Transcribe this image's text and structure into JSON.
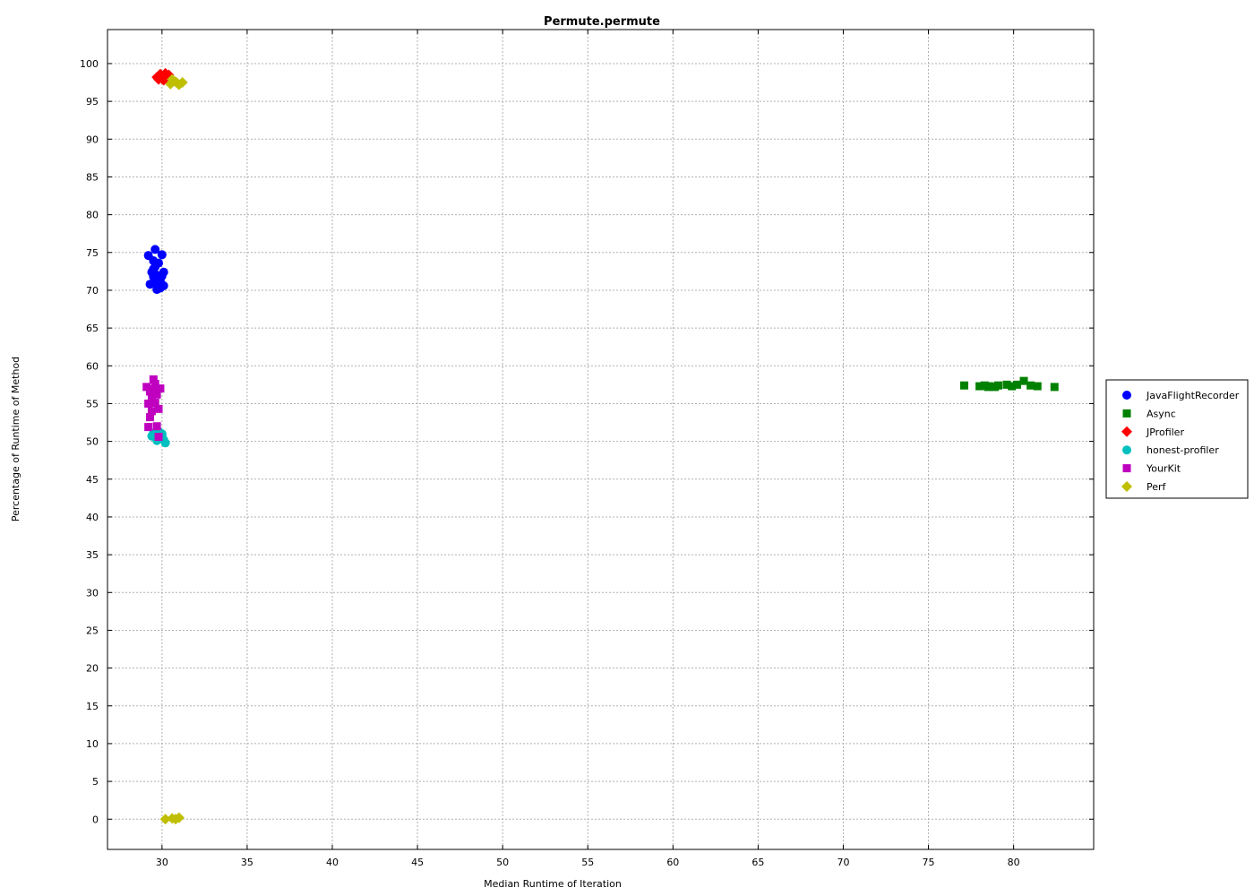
{
  "chart_data": {
    "type": "scatter",
    "title": "Permute.permute",
    "xlabel": "Median Runtime of Iteration",
    "ylabel": "Percentage of Runtime of Method",
    "xlim": [
      26.8,
      84.7
    ],
    "ylim": [
      -4,
      104.5
    ],
    "xticks": [
      30,
      35,
      40,
      45,
      50,
      55,
      60,
      65,
      70,
      75,
      80
    ],
    "yticks": [
      0,
      5,
      10,
      15,
      20,
      25,
      30,
      35,
      40,
      45,
      50,
      55,
      60,
      65,
      70,
      75,
      80,
      85,
      90,
      95,
      100
    ],
    "grid": true,
    "legend_position": "right",
    "series": [
      {
        "name": "JavaFlightRecorder",
        "marker": "circle",
        "color": "#0000ff",
        "points": [
          [
            29.2,
            74.6
          ],
          [
            29.6,
            75.4
          ],
          [
            30.0,
            74.7
          ],
          [
            29.5,
            73.9
          ],
          [
            29.8,
            73.6
          ],
          [
            29.6,
            73.1
          ],
          [
            29.4,
            72.4
          ],
          [
            29.7,
            72.0
          ],
          [
            30.1,
            72.4
          ],
          [
            30.0,
            71.9
          ],
          [
            29.5,
            71.8
          ],
          [
            29.9,
            71.3
          ],
          [
            29.3,
            70.8
          ],
          [
            29.6,
            71.1
          ],
          [
            30.1,
            70.6
          ],
          [
            29.7,
            70.1
          ],
          [
            29.9,
            70.3
          ],
          [
            29.5,
            72.8
          ]
        ]
      },
      {
        "name": "Async",
        "marker": "square",
        "color": "#008000",
        "points": [
          [
            77.1,
            57.4
          ],
          [
            78.0,
            57.3
          ],
          [
            78.3,
            57.4
          ],
          [
            78.6,
            57.3
          ],
          [
            78.9,
            57.2
          ],
          [
            79.1,
            57.4
          ],
          [
            79.6,
            57.5
          ],
          [
            79.9,
            57.3
          ],
          [
            80.2,
            57.5
          ],
          [
            80.6,
            58.0
          ],
          [
            81.0,
            57.4
          ],
          [
            81.4,
            57.3
          ],
          [
            82.4,
            57.2
          ],
          [
            78.5,
            57.2
          ]
        ]
      },
      {
        "name": "JProfiler",
        "marker": "diamond",
        "color": "#ff0000",
        "points": [
          [
            29.7,
            98.2
          ],
          [
            29.9,
            98.6
          ],
          [
            30.0,
            98.0
          ],
          [
            30.2,
            98.7
          ],
          [
            30.3,
            98.3
          ],
          [
            30.1,
            97.8
          ],
          [
            29.8,
            97.9
          ],
          [
            30.4,
            98.5
          ]
        ]
      },
      {
        "name": "honest-profiler",
        "marker": "circle",
        "color": "#00bfbf",
        "points": [
          [
            29.5,
            51.1
          ],
          [
            29.8,
            51.3
          ],
          [
            30.0,
            51.0
          ],
          [
            29.6,
            50.6
          ],
          [
            29.9,
            50.4
          ],
          [
            30.1,
            50.2
          ],
          [
            29.7,
            50.1
          ],
          [
            30.2,
            49.8
          ],
          [
            29.4,
            50.7
          ],
          [
            30.0,
            50.8
          ]
        ]
      },
      {
        "name": "YourKit",
        "marker": "square",
        "color": "#bf00bf",
        "points": [
          [
            29.1,
            57.2
          ],
          [
            29.5,
            58.2
          ],
          [
            29.6,
            57.6
          ],
          [
            29.9,
            57.0
          ],
          [
            29.3,
            56.6
          ],
          [
            29.7,
            56.2
          ],
          [
            29.4,
            55.7
          ],
          [
            29.6,
            55.1
          ],
          [
            29.2,
            55.0
          ],
          [
            29.8,
            54.3
          ],
          [
            29.4,
            54.0
          ],
          [
            29.3,
            53.2
          ],
          [
            29.2,
            51.9
          ],
          [
            29.7,
            52.0
          ],
          [
            29.8,
            50.6
          ],
          [
            29.5,
            56.9
          ]
        ]
      },
      {
        "name": "Perf",
        "marker": "diamond",
        "color": "#bfbf00",
        "points": [
          [
            30.5,
            97.3
          ],
          [
            30.8,
            97.6
          ],
          [
            31.0,
            97.2
          ],
          [
            31.2,
            97.5
          ],
          [
            30.6,
            97.9
          ],
          [
            30.9,
            97.4
          ],
          [
            30.2,
            0.0
          ],
          [
            30.6,
            0.1
          ],
          [
            30.8,
            0.0
          ],
          [
            31.0,
            0.2
          ]
        ]
      }
    ]
  }
}
